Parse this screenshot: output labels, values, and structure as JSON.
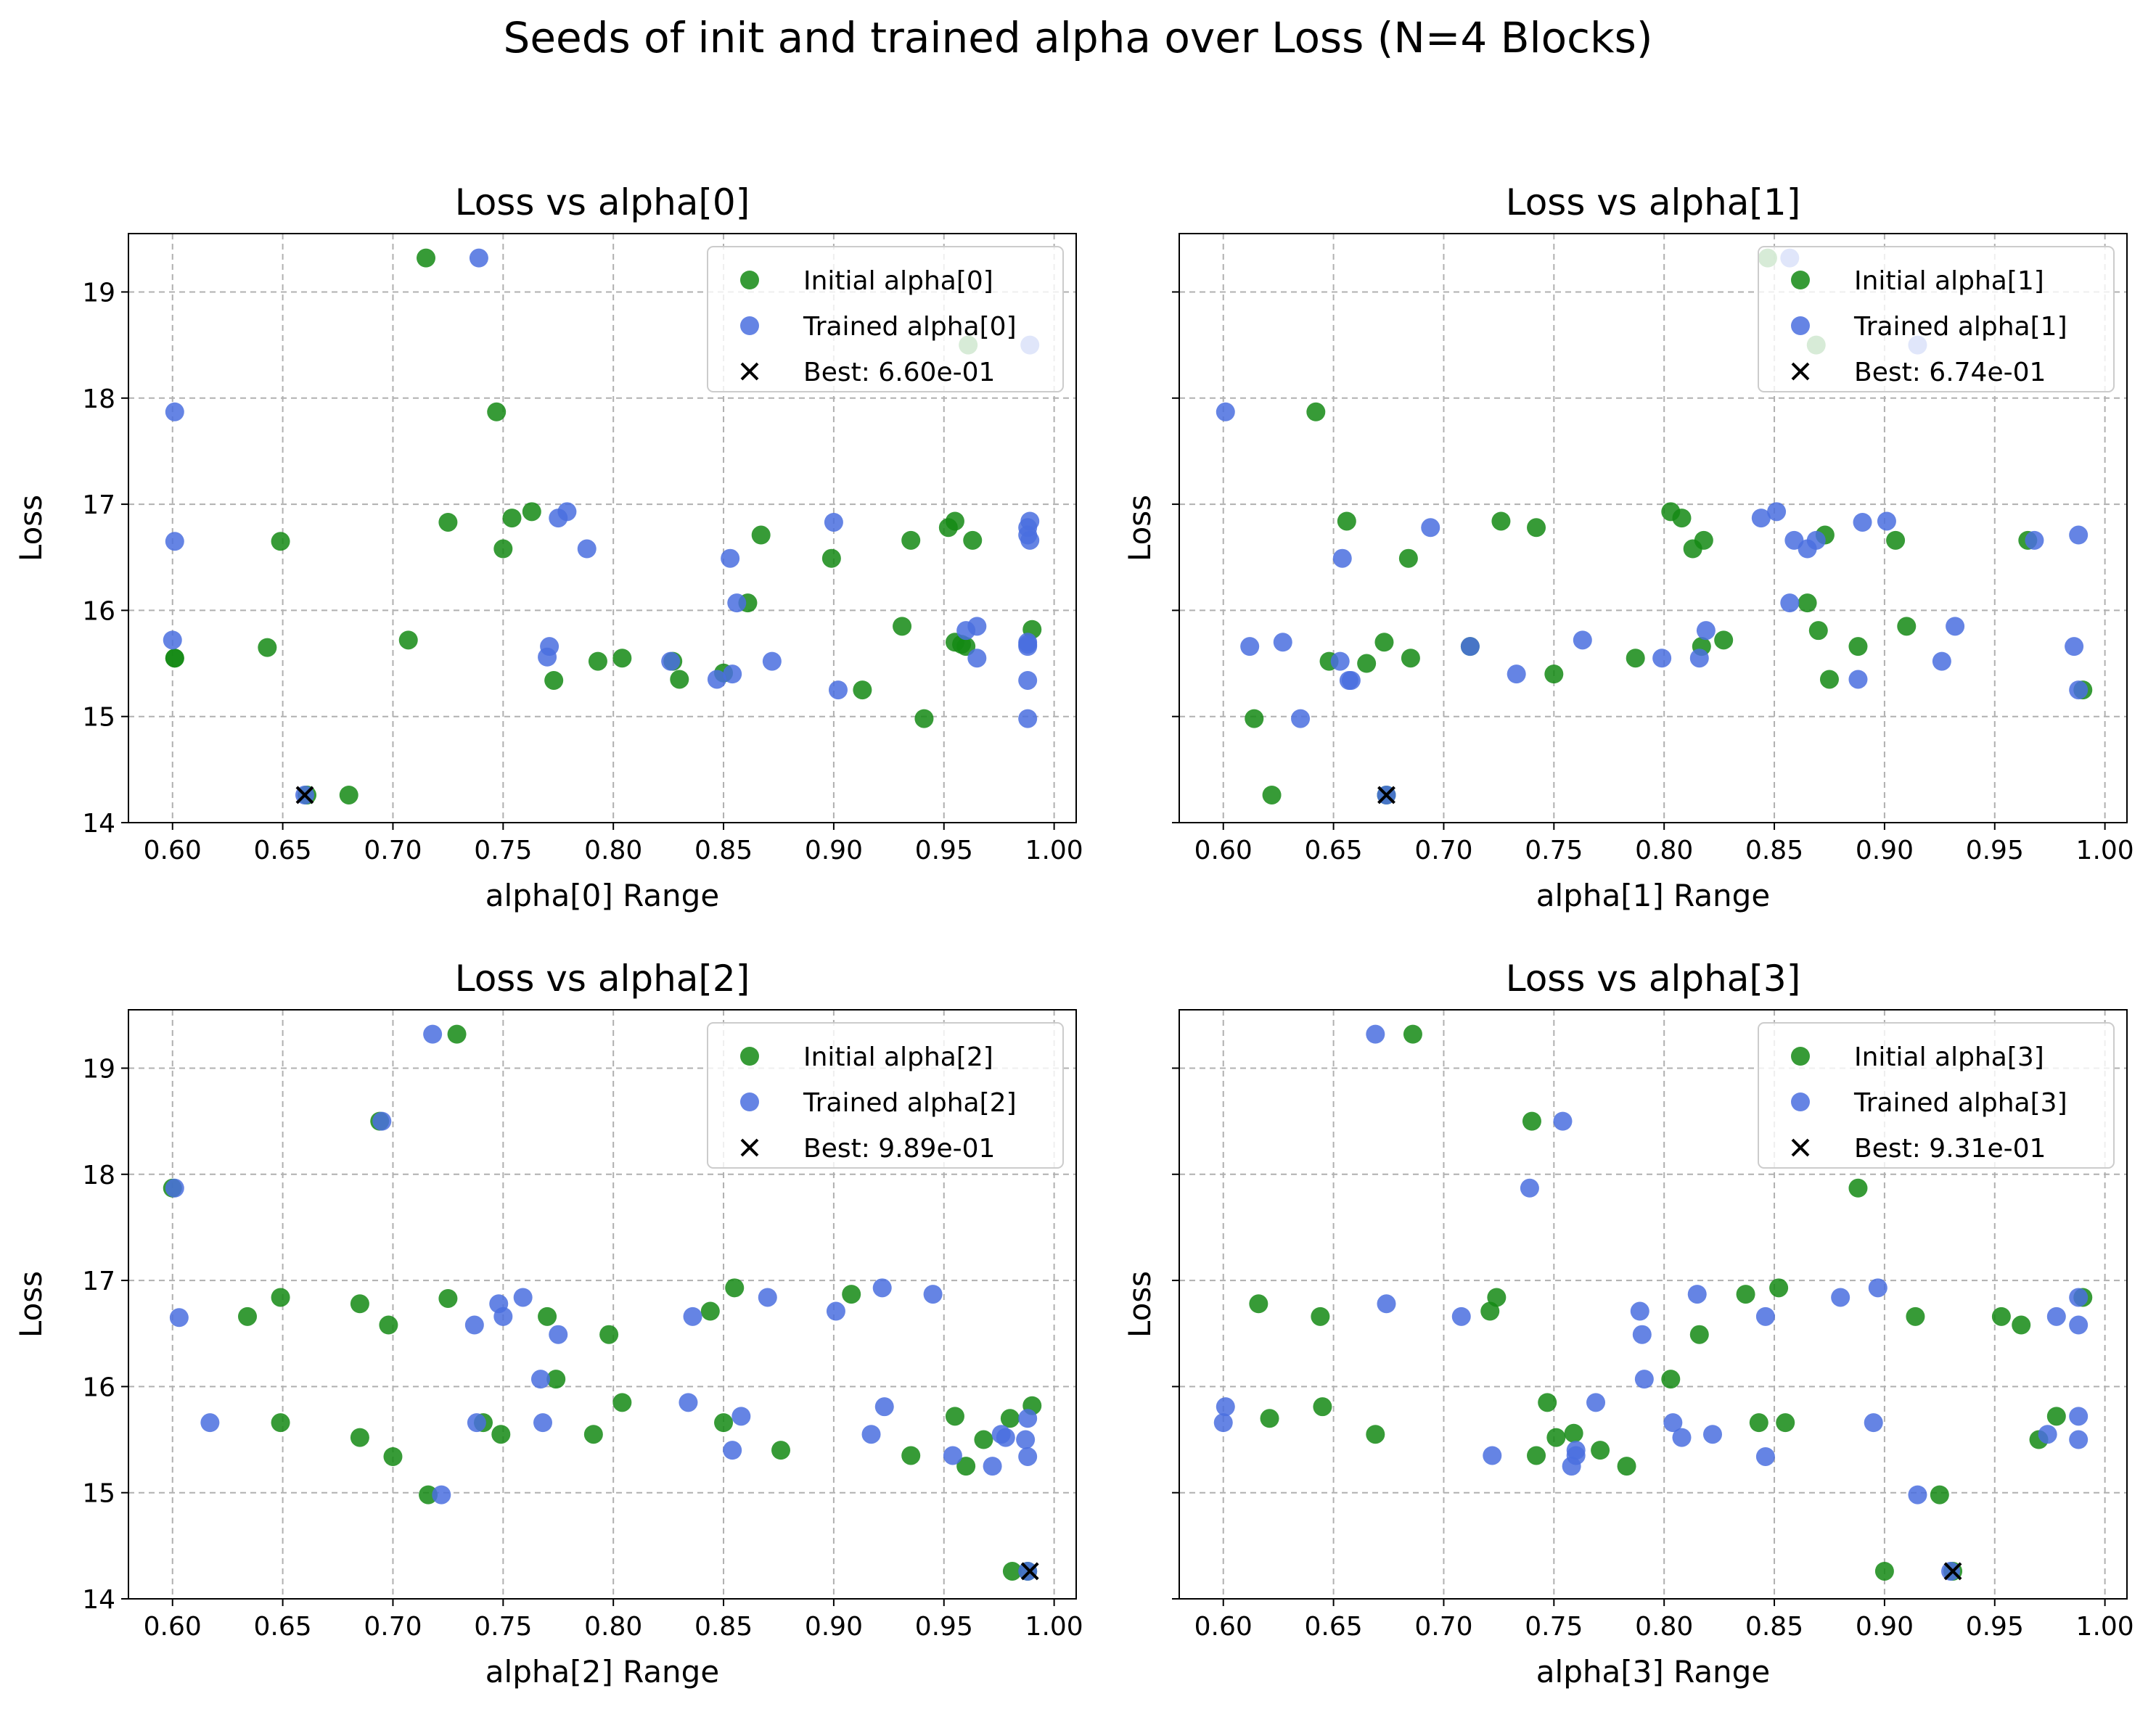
{
  "figure": {
    "title": "Seeds of init and trained alpha over Loss (N=4 Blocks)",
    "colors": {
      "initial": "#148a14",
      "trained": "#4a6fdf",
      "best": "#000000",
      "grid": "#b0b0b0"
    }
  },
  "chart_data": [
    {
      "type": "scatter",
      "title": "Loss vs alpha[0]",
      "xlabel": "alpha[0] Range",
      "ylabel": "Loss",
      "xlim": [
        0.58,
        1.01
      ],
      "ylim": [
        14,
        19.55
      ],
      "xticks": [
        "0.60",
        "0.65",
        "0.70",
        "0.75",
        "0.80",
        "0.85",
        "0.90",
        "0.95",
        "1.00"
      ],
      "yticks": [
        "14",
        "15",
        "16",
        "17",
        "18",
        "19"
      ],
      "grid": true,
      "legend": "top-right",
      "series": [
        {
          "name": "Initial alpha[0]",
          "marker": "circle",
          "x": [
            0.715,
            0.601,
            0.961,
            0.747,
            0.725,
            0.763,
            0.754,
            0.75,
            0.649,
            0.867,
            0.955,
            0.935,
            0.963,
            0.952,
            0.899,
            0.861,
            0.931,
            0.707,
            0.643,
            0.601,
            0.99,
            0.955,
            0.96,
            0.958,
            0.804,
            0.793,
            0.827,
            0.83,
            0.85,
            0.773,
            0.913,
            0.941,
            0.68,
            0.661
          ],
          "y": [
            19.32,
            15.55,
            18.5,
            17.87,
            16.83,
            16.93,
            16.87,
            16.58,
            16.65,
            16.71,
            16.84,
            16.66,
            16.66,
            16.78,
            16.49,
            16.07,
            15.85,
            15.72,
            15.65,
            15.55,
            15.82,
            15.7,
            15.66,
            15.68,
            15.55,
            15.52,
            15.52,
            15.35,
            15.41,
            15.34,
            15.25,
            14.98,
            14.26,
            14.26
          ]
        },
        {
          "name": "Trained alpha[0]",
          "marker": "circle",
          "x": [
            0.739,
            0.989,
            0.601,
            0.601,
            0.779,
            0.775,
            0.788,
            0.9,
            0.989,
            0.853,
            0.988,
            0.988,
            0.989,
            0.856,
            0.6,
            0.965,
            0.96,
            0.771,
            0.77,
            0.872,
            0.826,
            0.854,
            0.847,
            0.902,
            0.988,
            0.988,
            0.988,
            0.988,
            0.965,
            0.988,
            0.66
          ],
          "y": [
            19.32,
            18.5,
            17.87,
            16.65,
            16.93,
            16.87,
            16.58,
            16.83,
            16.84,
            16.49,
            16.78,
            16.71,
            16.66,
            16.07,
            15.72,
            15.85,
            15.81,
            15.66,
            15.56,
            15.52,
            15.52,
            15.4,
            15.35,
            15.25,
            15.34,
            15.66,
            15.7,
            15.68,
            15.55,
            14.98,
            14.26
          ]
        },
        {
          "name": "Best: 6.60e-01",
          "marker": "x",
          "x": [
            0.66
          ],
          "y": [
            14.26
          ]
        }
      ]
    },
    {
      "type": "scatter",
      "title": "Loss vs alpha[1]",
      "xlabel": "alpha[1] Range",
      "ylabel": "Loss",
      "xlim": [
        0.58,
        1.01
      ],
      "ylim": [
        14,
        19.55
      ],
      "xticks": [
        "0.60",
        "0.65",
        "0.70",
        "0.75",
        "0.80",
        "0.85",
        "0.90",
        "0.95",
        "1.00"
      ],
      "yticks": [
        "14",
        "15",
        "16",
        "17",
        "18",
        "19"
      ],
      "grid": true,
      "legend": "top-right",
      "series": [
        {
          "name": "Initial alpha[1]",
          "marker": "circle",
          "x": [
            0.847,
            0.869,
            0.642,
            0.656,
            0.726,
            0.742,
            0.803,
            0.808,
            0.813,
            0.818,
            0.873,
            0.905,
            0.965,
            0.684,
            0.865,
            0.87,
            0.91,
            0.673,
            0.712,
            0.827,
            0.817,
            0.888,
            0.648,
            0.665,
            0.685,
            0.787,
            0.75,
            0.875,
            0.99,
            0.614,
            0.622,
            0.674
          ],
          "y": [
            19.32,
            18.5,
            17.87,
            16.84,
            16.84,
            16.78,
            16.93,
            16.87,
            16.58,
            16.66,
            16.71,
            16.66,
            16.66,
            16.49,
            16.07,
            15.81,
            15.85,
            15.7,
            15.66,
            15.72,
            15.66,
            15.66,
            15.52,
            15.5,
            15.55,
            15.55,
            15.4,
            15.35,
            15.25,
            14.98,
            14.26,
            14.26
          ]
        },
        {
          "name": "Trained alpha[1]",
          "marker": "circle",
          "x": [
            0.857,
            0.915,
            0.601,
            0.694,
            0.654,
            0.844,
            0.851,
            0.859,
            0.865,
            0.869,
            0.89,
            0.901,
            0.968,
            0.988,
            0.857,
            0.819,
            0.932,
            0.612,
            0.627,
            0.763,
            0.712,
            0.799,
            0.816,
            0.653,
            0.657,
            0.658,
            0.733,
            0.888,
            0.926,
            0.986,
            0.988,
            0.635,
            0.674
          ],
          "y": [
            19.32,
            18.5,
            17.87,
            16.78,
            16.49,
            16.87,
            16.93,
            16.66,
            16.58,
            16.66,
            16.83,
            16.84,
            16.66,
            16.71,
            16.07,
            15.81,
            15.85,
            15.66,
            15.7,
            15.72,
            15.66,
            15.55,
            15.55,
            15.52,
            15.34,
            15.34,
            15.4,
            15.35,
            15.52,
            15.66,
            15.25,
            14.98,
            14.26
          ]
        },
        {
          "name": "Best: 6.74e-01",
          "marker": "x",
          "x": [
            0.674
          ],
          "y": [
            14.26
          ]
        }
      ]
    },
    {
      "type": "scatter",
      "title": "Loss vs alpha[2]",
      "xlabel": "alpha[2] Range",
      "ylabel": "Loss",
      "xlim": [
        0.58,
        1.01
      ],
      "ylim": [
        14,
        19.55
      ],
      "xticks": [
        "0.60",
        "0.65",
        "0.70",
        "0.75",
        "0.80",
        "0.85",
        "0.90",
        "0.95",
        "1.00"
      ],
      "yticks": [
        "14",
        "15",
        "16",
        "17",
        "18",
        "19"
      ],
      "grid": true,
      "legend": "top-right",
      "series": [
        {
          "name": "Initial alpha[2]",
          "marker": "circle",
          "x": [
            0.729,
            0.694,
            0.6,
            0.649,
            0.685,
            0.725,
            0.698,
            0.634,
            0.77,
            0.798,
            0.844,
            0.855,
            0.908,
            0.774,
            0.804,
            0.85,
            0.649,
            0.685,
            0.7,
            0.741,
            0.749,
            0.791,
            0.876,
            0.935,
            0.955,
            0.96,
            0.968,
            0.98,
            0.99,
            0.716,
            0.981,
            0.988
          ],
          "y": [
            19.32,
            18.5,
            17.87,
            16.84,
            16.78,
            16.83,
            16.58,
            16.66,
            16.66,
            16.49,
            16.71,
            16.93,
            16.87,
            16.07,
            15.85,
            15.66,
            15.66,
            15.52,
            15.34,
            15.66,
            15.55,
            15.55,
            15.4,
            15.35,
            15.72,
            15.25,
            15.5,
            15.7,
            15.82,
            14.98,
            14.26,
            14.26
          ]
        },
        {
          "name": "Trained alpha[2]",
          "marker": "circle",
          "x": [
            0.718,
            0.695,
            0.601,
            0.603,
            0.759,
            0.748,
            0.75,
            0.737,
            0.775,
            0.836,
            0.87,
            0.901,
            0.922,
            0.945,
            0.767,
            0.834,
            0.858,
            0.617,
            0.738,
            0.768,
            0.854,
            0.917,
            0.923,
            0.954,
            0.972,
            0.976,
            0.978,
            0.987,
            0.988,
            0.988,
            0.722,
            0.988
          ],
          "y": [
            19.32,
            18.5,
            17.87,
            16.65,
            16.84,
            16.78,
            16.66,
            16.58,
            16.49,
            16.66,
            16.84,
            16.71,
            16.93,
            16.87,
            16.07,
            15.85,
            15.72,
            15.66,
            15.66,
            15.66,
            15.4,
            15.55,
            15.81,
            15.35,
            15.25,
            15.55,
            15.52,
            15.5,
            15.7,
            15.34,
            14.98,
            14.26
          ]
        },
        {
          "name": "Best: 9.89e-01",
          "marker": "x",
          "x": [
            0.989
          ],
          "y": [
            14.26
          ]
        }
      ]
    },
    {
      "type": "scatter",
      "title": "Loss vs alpha[3]",
      "xlabel": "alpha[3] Range",
      "ylabel": "Loss",
      "xlim": [
        0.58,
        1.01
      ],
      "ylim": [
        14,
        19.55
      ],
      "xticks": [
        "0.60",
        "0.65",
        "0.70",
        "0.75",
        "0.80",
        "0.85",
        "0.90",
        "0.95",
        "1.00"
      ],
      "yticks": [
        "14",
        "15",
        "16",
        "17",
        "18",
        "19"
      ],
      "grid": true,
      "legend": "top-right",
      "series": [
        {
          "name": "Initial alpha[3]",
          "marker": "circle",
          "x": [
            0.686,
            0.74,
            0.888,
            0.616,
            0.644,
            0.724,
            0.721,
            0.837,
            0.852,
            0.914,
            0.953,
            0.962,
            0.99,
            0.816,
            0.803,
            0.621,
            0.645,
            0.747,
            0.978,
            0.669,
            0.751,
            0.759,
            0.742,
            0.771,
            0.783,
            0.843,
            0.855,
            0.97,
            0.925,
            0.9,
            0.931
          ],
          "y": [
            19.32,
            18.5,
            17.87,
            16.78,
            16.66,
            16.84,
            16.71,
            16.87,
            16.93,
            16.66,
            16.66,
            16.58,
            16.84,
            16.49,
            16.07,
            15.7,
            15.81,
            15.85,
            15.72,
            15.55,
            15.52,
            15.56,
            15.35,
            15.4,
            15.25,
            15.66,
            15.66,
            15.5,
            14.98,
            14.26,
            14.26
          ]
        },
        {
          "name": "Trained alpha[3]",
          "marker": "circle",
          "x": [
            0.669,
            0.754,
            0.739,
            0.674,
            0.708,
            0.789,
            0.815,
            0.846,
            0.88,
            0.897,
            0.978,
            0.988,
            0.988,
            0.79,
            0.791,
            0.601,
            0.6,
            0.769,
            0.722,
            0.804,
            0.808,
            0.822,
            0.895,
            0.76,
            0.76,
            0.758,
            0.846,
            0.974,
            0.988,
            0.988,
            0.915,
            0.93
          ],
          "y": [
            19.32,
            18.5,
            17.87,
            16.78,
            16.66,
            16.71,
            16.87,
            16.66,
            16.84,
            16.93,
            16.66,
            16.84,
            16.58,
            16.49,
            16.07,
            15.81,
            15.66,
            15.85,
            15.35,
            15.66,
            15.52,
            15.55,
            15.66,
            15.4,
            15.35,
            15.25,
            15.34,
            15.55,
            15.72,
            15.5,
            14.98,
            14.26
          ]
        },
        {
          "name": "Best: 9.31e-01",
          "marker": "x",
          "x": [
            0.931
          ],
          "y": [
            14.26
          ]
        }
      ]
    }
  ]
}
